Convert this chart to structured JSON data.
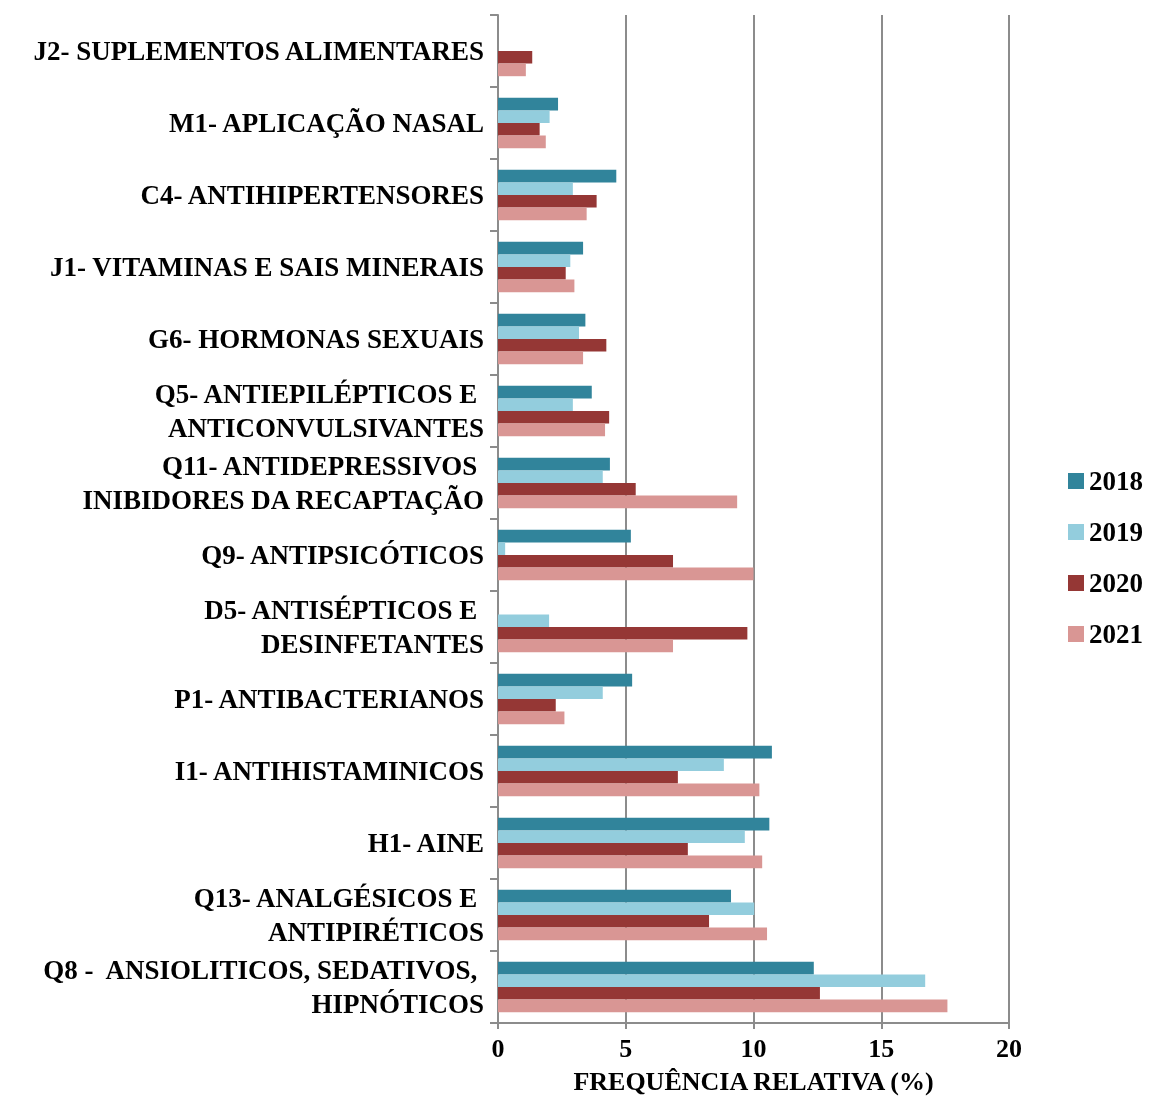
{
  "chart_data": {
    "type": "bar",
    "orientation": "horizontal",
    "xlabel": "FREQUÊNCIA RELATIVA (%)",
    "categories": [
      "J2- SUPLEMENTOS ALIMENTARES",
      "M1- APLICAÇÃO NASAL",
      "C4- ANTIHIPERTENSORES",
      "J1- VITAMINAS E SAIS MINERAIS",
      "G6- HORMONAS SEXUAIS",
      "Q5- ANTIEPILÉPTICOS E ANTICONVULSIVANTES",
      "Q11- ANTIDEPRESSIVOS INIBIDORES DA RECAPTAÇÃO",
      "Q9- ANTIPSICÓTICOS",
      "D5- ANTISÉPTICOS E DESINFETANTES",
      "P1- ANTIBACTERIANOS",
      "I1- ANTIHISTAMINICOS",
      "H1- AINE",
      "Q13- ANALGÉSICOS E ANTIPIRÉTICOS",
      "Q8 -  ANSIOLITICOS, SEDATIVOS, HIPNÓTICOS"
    ],
    "series": [
      {
        "name": "2018",
        "color": "#31849b",
        "values": [
          null,
          2.35,
          4.63,
          3.33,
          3.42,
          3.67,
          4.38,
          5.2,
          null,
          5.25,
          10.72,
          10.62,
          9.12,
          12.36
        ]
      },
      {
        "name": "2019",
        "color": "#93cddd",
        "values": [
          null,
          2.02,
          2.93,
          2.83,
          3.17,
          2.93,
          4.1,
          0.28,
          2.0,
          4.1,
          8.84,
          9.66,
          10.03,
          16.72
        ]
      },
      {
        "name": "2020",
        "color": "#953735",
        "values": [
          1.34,
          1.63,
          3.86,
          2.65,
          4.24,
          4.35,
          5.39,
          6.85,
          9.76,
          2.26,
          7.04,
          7.43,
          8.26,
          12.6
        ]
      },
      {
        "name": "2021",
        "color": "#d99694",
        "values": [
          1.09,
          1.87,
          3.47,
          2.99,
          3.33,
          4.19,
          9.36,
          10.0,
          6.85,
          2.6,
          10.23,
          10.34,
          10.53,
          17.59
        ]
      }
    ],
    "xlim": [
      0,
      20
    ],
    "xticks": [
      0,
      5,
      10,
      15,
      20
    ],
    "grid": "x",
    "legend": "right"
  }
}
